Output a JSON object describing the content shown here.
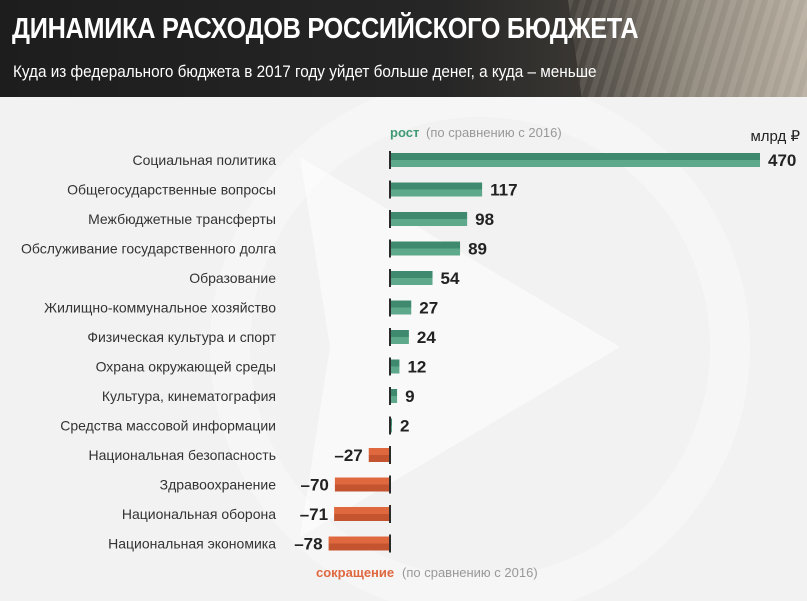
{
  "header": {
    "title": "ДИНАМИКА РАСХОДОВ РОССИЙСКОГО БЮДЖЕТА",
    "subtitle": "Куда из федерального бюджета в 2017 году уйдет больше денег, а куда – меньше"
  },
  "legend": {
    "growth_label": "рост",
    "growth_note": "(по сравнению с 2016)",
    "cut_label": "сокращение",
    "cut_note": "(по сравнению с 2016)",
    "unit": "млрд ₽"
  },
  "colors": {
    "growth": "#5ea98b",
    "growth_dark": "#3f8a6e",
    "cut": "#e0683f",
    "cut_dark": "#c4532f",
    "text": "#333333",
    "value": "#222222",
    "growth_label_color": "#3f9a74",
    "cut_label_color": "#e0683f",
    "note_color": "#999999"
  },
  "chart_data": {
    "type": "bar",
    "orientation": "horizontal",
    "categories": [
      "Социальная политика",
      "Общегосударственные вопросы",
      "Межбюджетные трансферты",
      "Обслуживание государственного долга",
      "Образование",
      "Жилищно-коммунальное хозяйство",
      "Физическая культура и спорт",
      "Охрана окружающей среды",
      "Культура, кинематография",
      "Средства массовой информации",
      "Национальная безопасность",
      "Здравоохранение",
      "Национальная оборона",
      "Национальная экономика"
    ],
    "values": [
      470,
      117,
      98,
      89,
      54,
      27,
      24,
      12,
      9,
      2,
      -27,
      -70,
      -71,
      -78
    ],
    "value_labels": [
      "470",
      "117",
      "98",
      "89",
      "54",
      "27",
      "24",
      "12",
      "9",
      "2",
      "–27",
      "–70",
      "–71",
      "–78"
    ],
    "unit": "млрд ₽"
  }
}
